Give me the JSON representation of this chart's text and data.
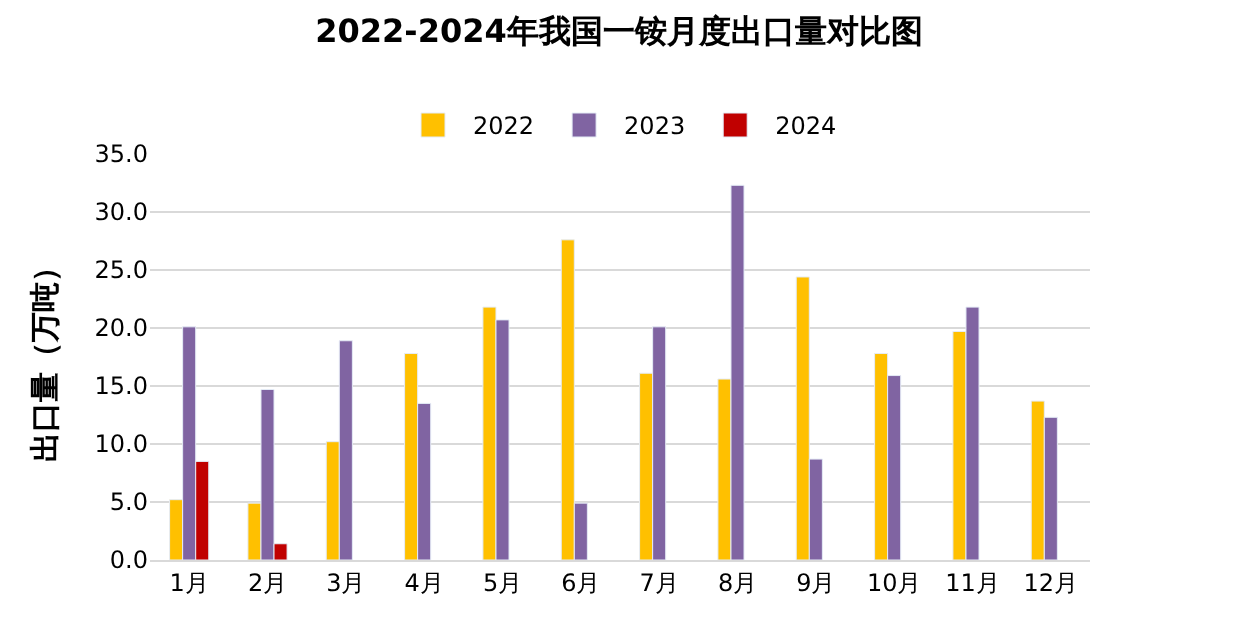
{
  "chart_data": {
    "type": "bar",
    "title": "2022-2024年我国一铵月度出口量对比图",
    "ylabel": "出口量（万吨）",
    "categories": [
      "1月",
      "2月",
      "3月",
      "4月",
      "5月",
      "6月",
      "7月",
      "8月",
      "9月",
      "10月",
      "11月",
      "12月"
    ],
    "series": [
      {
        "name": "2022",
        "color": "#ffc000",
        "values": [
          5.2,
          4.9,
          10.2,
          17.8,
          21.8,
          27.6,
          16.1,
          15.6,
          24.4,
          17.8,
          19.7,
          13.7
        ]
      },
      {
        "name": "2023",
        "color": "#8064a2",
        "values": [
          20.1,
          14.7,
          18.9,
          13.5,
          20.7,
          4.9,
          20.1,
          32.3,
          8.7,
          15.9,
          21.8,
          12.3
        ]
      },
      {
        "name": "2024",
        "color": "#c00000",
        "values": [
          8.5,
          1.4,
          null,
          null,
          null,
          null,
          null,
          null,
          null,
          null,
          null,
          null
        ]
      }
    ],
    "ylim": [
      0,
      35
    ],
    "yticks": [
      {
        "value": 0,
        "label": "0.0"
      },
      {
        "value": 5,
        "label": "5.0"
      },
      {
        "value": 10,
        "label": "10.0"
      },
      {
        "value": 15,
        "label": "15.0"
      },
      {
        "value": 20,
        "label": "20.0"
      },
      {
        "value": 25,
        "label": "25.0"
      },
      {
        "value": 30,
        "label": "30.0"
      },
      {
        "value": 35,
        "label": "35.0"
      }
    ],
    "grid": "y",
    "legend": "top"
  }
}
